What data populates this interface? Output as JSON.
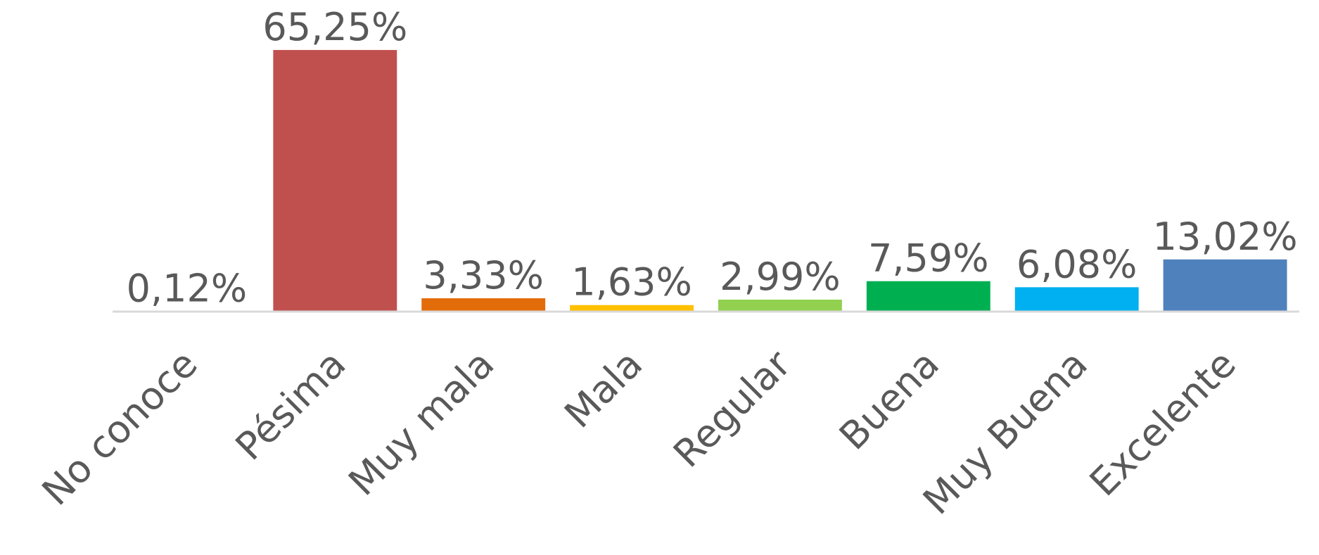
{
  "chart_data": {
    "type": "bar",
    "categories": [
      "No conoce",
      "Pésima",
      "Muy mala",
      "Mala",
      "Regular",
      "Buena",
      "Muy Buena",
      "Excelente"
    ],
    "values": [
      0.12,
      65.25,
      3.33,
      1.63,
      2.99,
      7.59,
      6.08,
      13.02
    ],
    "value_labels": [
      "0,12%",
      "65,25%",
      "3,33%",
      "1,63%",
      "2,99%",
      "7,59%",
      "6,08%",
      "13,02%"
    ],
    "colors": [
      "#4472c4",
      "#c0504d",
      "#e36c0a",
      "#ffc000",
      "#92d050",
      "#00b050",
      "#00b0f0",
      "#4f81bd"
    ],
    "ylim": [
      0,
      70
    ]
  }
}
